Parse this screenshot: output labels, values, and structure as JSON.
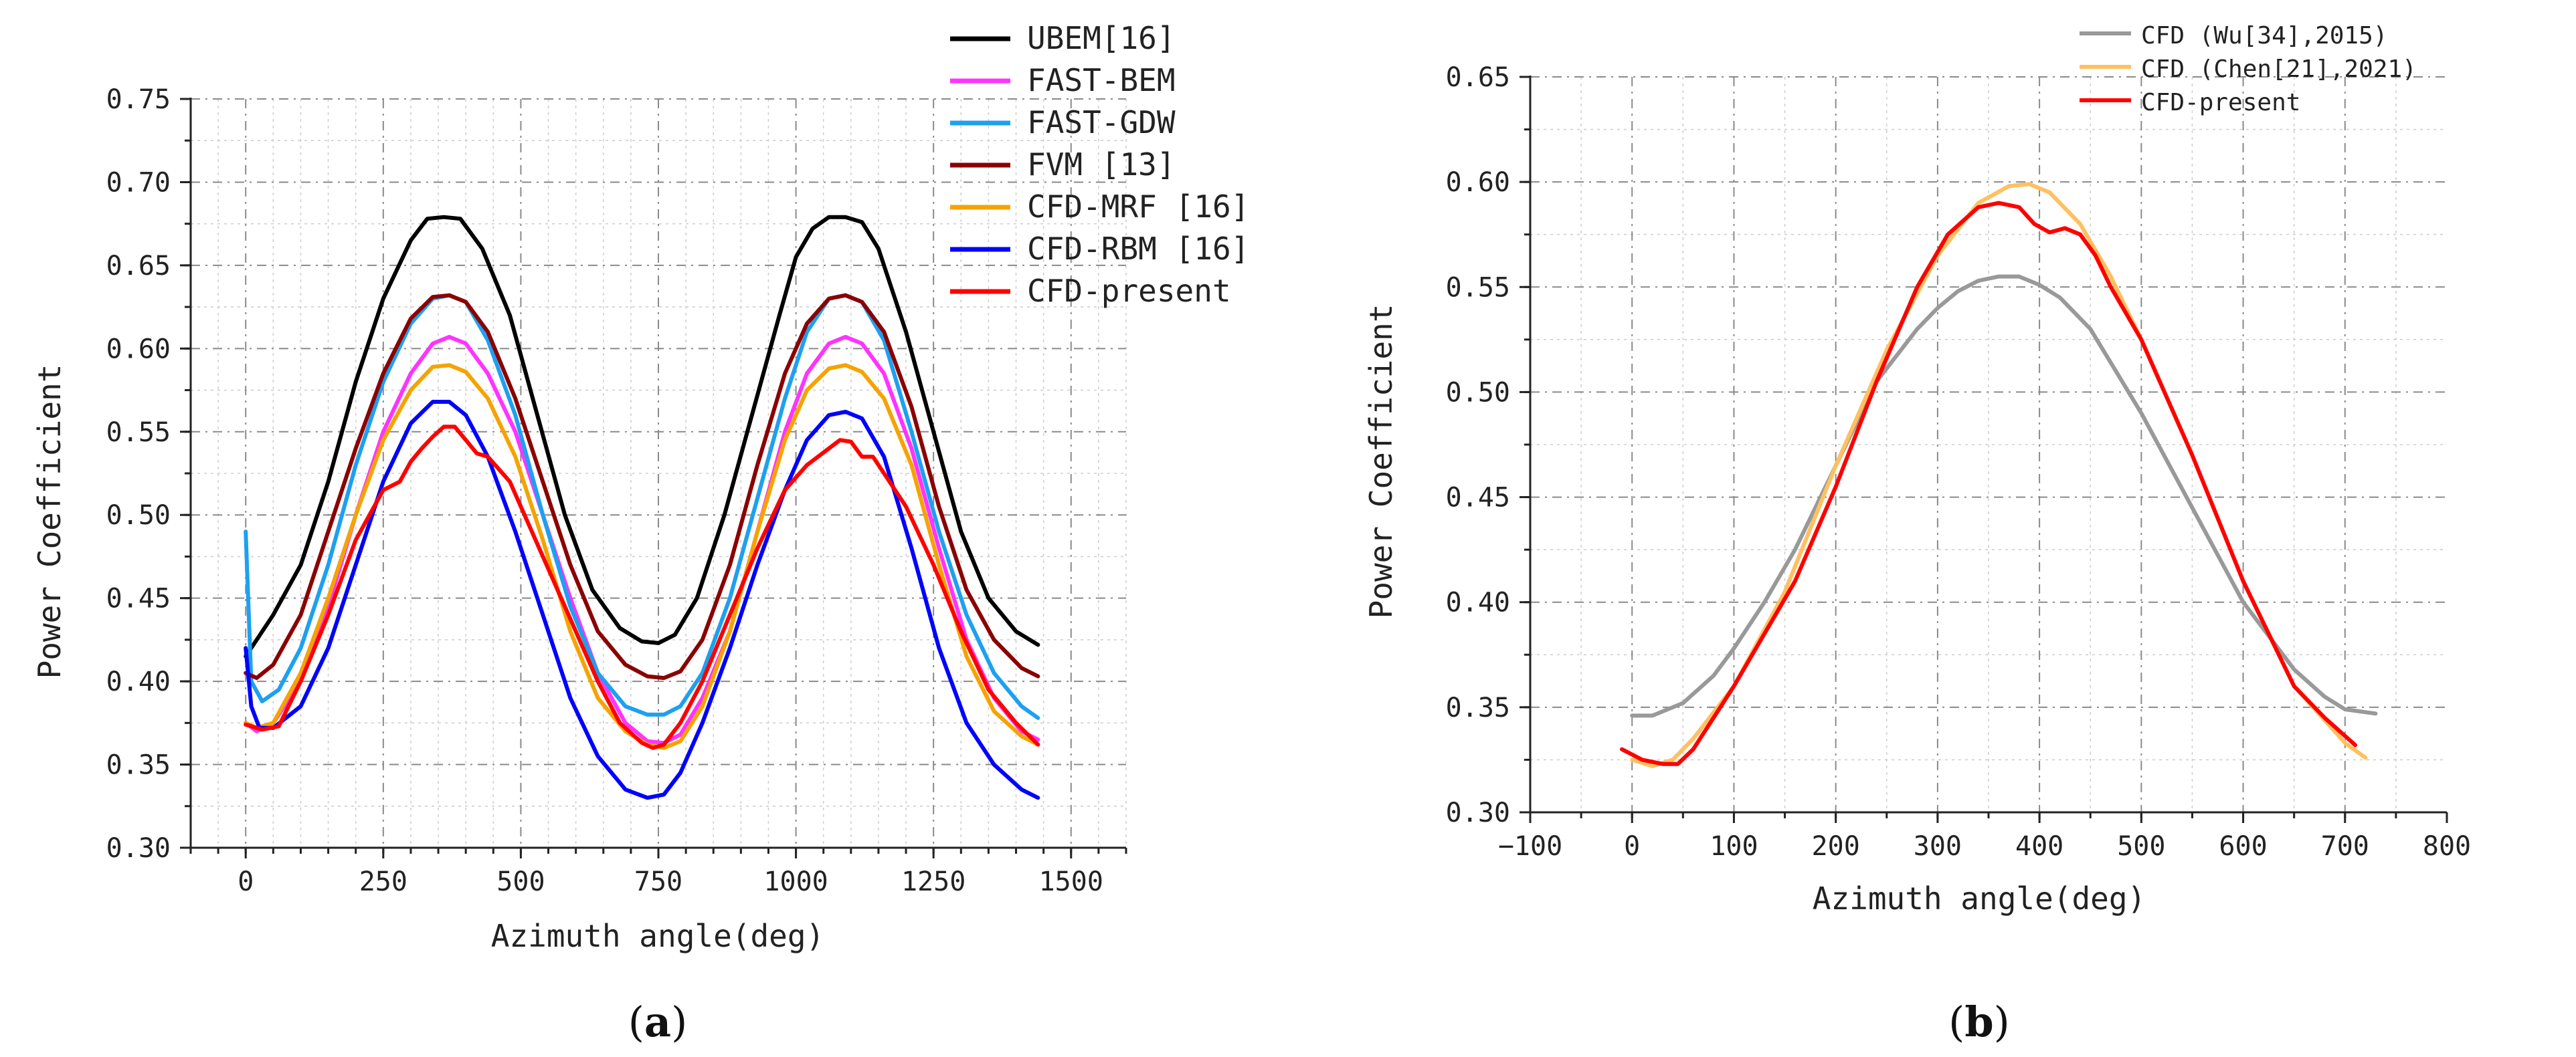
{
  "chart_data": [
    {
      "type": "line",
      "panel_label": "(a)",
      "xlabel": "Azimuth angle(deg)",
      "ylabel": "Power Coefficient",
      "xlim": [
        -100,
        1600
      ],
      "ylim": [
        0.3,
        0.75
      ],
      "xticks": [
        0,
        250,
        500,
        750,
        1000,
        1250,
        1500
      ],
      "xtick_labels": [
        "0",
        "250",
        "500",
        "750",
        "1000",
        "1250",
        "1500"
      ],
      "yticks": [
        0.3,
        0.35,
        0.4,
        0.45,
        0.5,
        0.55,
        0.6,
        0.65,
        0.7,
        0.75
      ],
      "ytick_labels": [
        "0.30",
        "0.35",
        "0.40",
        "0.45",
        "0.50",
        "0.55",
        "0.60",
        "0.65",
        "0.70",
        "0.75"
      ],
      "grid": true,
      "legend_position": "top-right",
      "series": [
        {
          "name": "UBEM[16]",
          "color": "#000000",
          "x": [
            0,
            20,
            50,
            100,
            150,
            200,
            250,
            300,
            330,
            360,
            390,
            430,
            480,
            530,
            580,
            630,
            680,
            720,
            750,
            780,
            820,
            870,
            920,
            970,
            1000,
            1030,
            1060,
            1090,
            1120,
            1150,
            1200,
            1250,
            1300,
            1350,
            1400,
            1440
          ],
          "y": [
            0.415,
            0.425,
            0.44,
            0.47,
            0.52,
            0.58,
            0.63,
            0.665,
            0.678,
            0.679,
            0.678,
            0.66,
            0.62,
            0.56,
            0.5,
            0.455,
            0.432,
            0.424,
            0.423,
            0.428,
            0.45,
            0.5,
            0.56,
            0.62,
            0.655,
            0.672,
            0.679,
            0.679,
            0.676,
            0.66,
            0.61,
            0.55,
            0.49,
            0.45,
            0.43,
            0.422
          ]
        },
        {
          "name": "FAST-BEM",
          "color": "#ff33ff",
          "x": [
            0,
            20,
            50,
            100,
            150,
            200,
            250,
            300,
            340,
            370,
            400,
            440,
            490,
            540,
            590,
            640,
            690,
            730,
            760,
            790,
            830,
            880,
            930,
            980,
            1020,
            1060,
            1090,
            1120,
            1160,
            1210,
            1260,
            1310,
            1360,
            1410,
            1440
          ],
          "y": [
            0.375,
            0.37,
            0.375,
            0.4,
            0.445,
            0.5,
            0.55,
            0.585,
            0.603,
            0.607,
            0.603,
            0.585,
            0.55,
            0.5,
            0.45,
            0.405,
            0.375,
            0.364,
            0.363,
            0.368,
            0.39,
            0.43,
            0.49,
            0.55,
            0.585,
            0.603,
            0.607,
            0.603,
            0.585,
            0.54,
            0.48,
            0.425,
            0.39,
            0.37,
            0.365
          ]
        },
        {
          "name": "FAST-GDW",
          "color": "#1ea0f0",
          "x": [
            0,
            10,
            30,
            60,
            100,
            150,
            200,
            250,
            300,
            340,
            370,
            400,
            440,
            490,
            540,
            590,
            640,
            690,
            730,
            760,
            790,
            830,
            880,
            930,
            980,
            1020,
            1060,
            1090,
            1120,
            1160,
            1210,
            1260,
            1310,
            1360,
            1410,
            1440
          ],
          "y": [
            0.49,
            0.4,
            0.388,
            0.395,
            0.42,
            0.47,
            0.53,
            0.58,
            0.615,
            0.63,
            0.632,
            0.628,
            0.605,
            0.56,
            0.5,
            0.445,
            0.405,
            0.385,
            0.38,
            0.38,
            0.385,
            0.405,
            0.45,
            0.51,
            0.57,
            0.61,
            0.63,
            0.632,
            0.628,
            0.605,
            0.55,
            0.49,
            0.44,
            0.405,
            0.385,
            0.378
          ]
        },
        {
          "name": "FVM [13]",
          "color": "#8b0000",
          "x": [
            0,
            20,
            50,
            100,
            150,
            200,
            250,
            300,
            340,
            370,
            400,
            440,
            490,
            540,
            590,
            640,
            690,
            730,
            760,
            790,
            830,
            880,
            930,
            980,
            1020,
            1060,
            1090,
            1120,
            1160,
            1210,
            1260,
            1310,
            1360,
            1410,
            1440
          ],
          "y": [
            0.405,
            0.402,
            0.41,
            0.44,
            0.49,
            0.54,
            0.585,
            0.618,
            0.631,
            0.632,
            0.628,
            0.61,
            0.57,
            0.52,
            0.47,
            0.43,
            0.41,
            0.403,
            0.402,
            0.406,
            0.425,
            0.47,
            0.53,
            0.585,
            0.615,
            0.63,
            0.632,
            0.628,
            0.61,
            0.565,
            0.505,
            0.455,
            0.425,
            0.408,
            0.403
          ]
        },
        {
          "name": "CFD-MRF [16]",
          "color": "#f5a300",
          "x": [
            0,
            20,
            50,
            100,
            150,
            200,
            250,
            300,
            340,
            370,
            400,
            440,
            490,
            540,
            590,
            640,
            690,
            730,
            760,
            790,
            830,
            880,
            930,
            980,
            1020,
            1060,
            1090,
            1120,
            1160,
            1210,
            1260,
            1310,
            1360,
            1410,
            1440
          ],
          "y": [
            0.375,
            0.372,
            0.375,
            0.405,
            0.45,
            0.5,
            0.545,
            0.575,
            0.589,
            0.59,
            0.586,
            0.57,
            0.535,
            0.485,
            0.43,
            0.39,
            0.37,
            0.362,
            0.36,
            0.364,
            0.385,
            0.43,
            0.49,
            0.545,
            0.575,
            0.588,
            0.59,
            0.586,
            0.57,
            0.53,
            0.47,
            0.415,
            0.382,
            0.367,
            0.362
          ]
        },
        {
          "name": "CFD-RBM [16]",
          "color": "#0000ff",
          "x": [
            0,
            10,
            25,
            50,
            100,
            150,
            200,
            250,
            300,
            340,
            370,
            400,
            440,
            490,
            540,
            590,
            640,
            690,
            730,
            760,
            790,
            830,
            880,
            930,
            980,
            1020,
            1060,
            1090,
            1120,
            1160,
            1210,
            1260,
            1310,
            1360,
            1410,
            1440
          ],
          "y": [
            0.42,
            0.385,
            0.372,
            0.372,
            0.385,
            0.42,
            0.47,
            0.52,
            0.555,
            0.568,
            0.568,
            0.56,
            0.535,
            0.49,
            0.44,
            0.39,
            0.355,
            0.335,
            0.33,
            0.332,
            0.345,
            0.375,
            0.42,
            0.47,
            0.515,
            0.545,
            0.56,
            0.562,
            0.558,
            0.535,
            0.48,
            0.42,
            0.375,
            0.35,
            0.335,
            0.33
          ]
        },
        {
          "name": "CFD-present",
          "color": "#ff0000",
          "x": [
            0,
            30,
            60,
            100,
            150,
            200,
            250,
            280,
            300,
            320,
            340,
            360,
            380,
            400,
            420,
            440,
            480,
            520,
            560,
            600,
            640,
            680,
            720,
            740,
            760,
            790,
            830,
            880,
            930,
            980,
            1020,
            1040,
            1060,
            1080,
            1100,
            1120,
            1140,
            1160,
            1200,
            1250,
            1300,
            1350,
            1400,
            1440
          ],
          "y": [
            0.374,
            0.371,
            0.373,
            0.4,
            0.44,
            0.485,
            0.515,
            0.52,
            0.532,
            0.54,
            0.547,
            0.553,
            0.553,
            0.545,
            0.537,
            0.535,
            0.52,
            0.49,
            0.46,
            0.43,
            0.4,
            0.375,
            0.363,
            0.36,
            0.362,
            0.375,
            0.4,
            0.44,
            0.48,
            0.515,
            0.53,
            0.535,
            0.54,
            0.545,
            0.544,
            0.535,
            0.535,
            0.525,
            0.505,
            0.47,
            0.43,
            0.395,
            0.375,
            0.362
          ]
        }
      ]
    },
    {
      "type": "line",
      "panel_label": "(b)",
      "xlabel": "Azimuth angle(deg)",
      "ylabel": "Power Coefficient",
      "xlim": [
        -100,
        800
      ],
      "ylim": [
        0.3,
        0.65
      ],
      "xticks": [
        -100,
        0,
        100,
        200,
        300,
        400,
        500,
        600,
        700,
        800
      ],
      "xtick_labels": [
        "−100",
        "0",
        "100",
        "200",
        "300",
        "400",
        "500",
        "600",
        "700",
        "800"
      ],
      "yticks": [
        0.3,
        0.35,
        0.4,
        0.45,
        0.5,
        0.55,
        0.6,
        0.65
      ],
      "ytick_labels": [
        "0.30",
        "0.35",
        "0.40",
        "0.45",
        "0.50",
        "0.55",
        "0.60",
        "0.65"
      ],
      "grid": true,
      "legend_position": "top-right",
      "series": [
        {
          "name": "CFD (Wu[34],2015)",
          "color": "#999999",
          "x": [
            0,
            20,
            50,
            80,
            100,
            130,
            160,
            200,
            240,
            280,
            300,
            320,
            340,
            360,
            380,
            400,
            420,
            450,
            500,
            550,
            600,
            650,
            680,
            700,
            730
          ],
          "y": [
            0.346,
            0.346,
            0.352,
            0.365,
            0.378,
            0.4,
            0.425,
            0.465,
            0.505,
            0.53,
            0.54,
            0.548,
            0.553,
            0.555,
            0.555,
            0.551,
            0.545,
            0.53,
            0.49,
            0.445,
            0.4,
            0.368,
            0.355,
            0.349,
            0.347
          ]
        },
        {
          "name": "CFD (Chen[21],2021)",
          "color": "#ffc060",
          "x": [
            0,
            20,
            40,
            60,
            100,
            150,
            200,
            250,
            300,
            340,
            370,
            390,
            410,
            440,
            470,
            500,
            550,
            600,
            650,
            700,
            720
          ],
          "y": [
            0.325,
            0.322,
            0.325,
            0.335,
            0.36,
            0.405,
            0.465,
            0.52,
            0.565,
            0.59,
            0.598,
            0.599,
            0.595,
            0.58,
            0.555,
            0.525,
            0.47,
            0.41,
            0.36,
            0.333,
            0.326
          ]
        },
        {
          "name": "CFD-present",
          "color": "#ff0000",
          "x": [
            -10,
            10,
            30,
            45,
            60,
            80,
            100,
            130,
            160,
            200,
            240,
            280,
            310,
            340,
            360,
            380,
            395,
            410,
            425,
            440,
            455,
            470,
            500,
            550,
            600,
            650,
            680,
            710
          ],
          "y": [
            0.33,
            0.325,
            0.323,
            0.323,
            0.33,
            0.345,
            0.36,
            0.385,
            0.41,
            0.455,
            0.505,
            0.55,
            0.575,
            0.588,
            0.59,
            0.588,
            0.58,
            0.576,
            0.578,
            0.575,
            0.565,
            0.55,
            0.525,
            0.47,
            0.41,
            0.36,
            0.345,
            0.332
          ]
        }
      ]
    }
  ]
}
